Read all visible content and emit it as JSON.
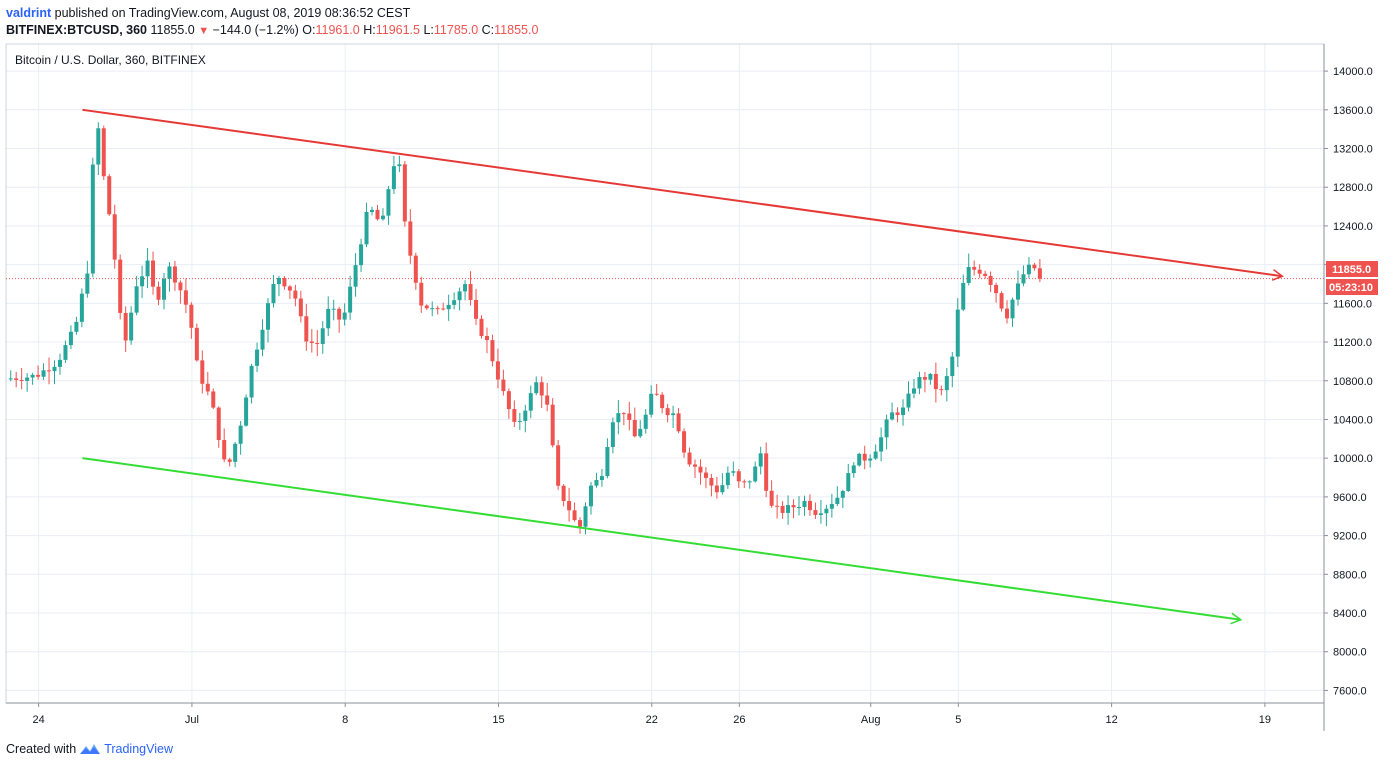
{
  "header": {
    "author": "valdrint",
    "published_text": "published on TradingView.com, August 08, 2019 08:36:52 CEST",
    "symbol_line": "BITFINEX:BTCUSD, 360",
    "last": "11855.0",
    "change": "−144.0 (−1.2%)",
    "o_label": "O:",
    "o_value": "11961.0",
    "h_label": "H:",
    "h_value": "11961.5",
    "l_label": "L:",
    "l_value": "11785.0",
    "c_label": "C:",
    "c_value": "11855.0"
  },
  "legend": {
    "title": "Bitcoin / U.S. Dollar, 360, BITFINEX"
  },
  "price_badges": {
    "last_price": "11855.0",
    "countdown": "05:23:10"
  },
  "footer": {
    "created_with": "Created with",
    "brand": "TradingView"
  },
  "colors": {
    "up": "#26a69a",
    "down": "#ef5350",
    "resistance": "#e53935",
    "support": "#33dd33",
    "grid": "#e9eef5",
    "brand": "#2962ff"
  },
  "chart_data": {
    "type": "candlestick",
    "title": "Bitcoin / U.S. Dollar, 360, BITFINEX",
    "y_axis": {
      "ticks": [
        "14000.0",
        "13600.0",
        "13200.0",
        "12800.0",
        "12400.0",
        "12000.0",
        "11600.0",
        "11200.0",
        "10800.0",
        "10400.0",
        "10000.0",
        "9600.0",
        "9200.0",
        "8800.0",
        "8400.0",
        "8000.0",
        "7600.0"
      ],
      "range": [
        7470,
        14280
      ]
    },
    "x_axis": {
      "ticks": [
        {
          "label": "24",
          "day": 0
        },
        {
          "label": "Jul",
          "day": 7
        },
        {
          "label": "8",
          "day": 14
        },
        {
          "label": "15",
          "day": 21
        },
        {
          "label": "22",
          "day": 28
        },
        {
          "label": "26",
          "day": 32
        },
        {
          "label": "Aug",
          "day": 38
        },
        {
          "label": "5",
          "day": 42
        },
        {
          "label": "12",
          "day": 49
        },
        {
          "label": "19",
          "day": 56
        }
      ],
      "range": [
        -1.49,
        58.7
      ]
    },
    "grid": true,
    "trendlines": [
      {
        "name": "resistance",
        "from": {
          "day": 2,
          "price": 13600
        },
        "to": {
          "day": 56.8,
          "price": 11880
        },
        "color": "#e53935"
      },
      {
        "name": "support",
        "from": {
          "day": 2,
          "price": 10000
        },
        "to": {
          "day": 54.9,
          "price": 8330
        },
        "color": "#33dd33"
      }
    ],
    "last_price_line": 11855.0,
    "anchors": [
      {
        "day": -1.4,
        "price": 10820
      },
      {
        "day": 0.0,
        "price": 10850
      },
      {
        "day": 1.0,
        "price": 11000
      },
      {
        "day": 1.8,
        "price": 11350
      },
      {
        "day": 2.4,
        "price": 12000
      },
      {
        "day": 2.6,
        "price": 13000
      },
      {
        "day": 2.85,
        "price": 13400
      },
      {
        "day": 3.1,
        "price": 12900
      },
      {
        "day": 3.5,
        "price": 12300
      },
      {
        "day": 4.0,
        "price": 11100
      },
      {
        "day": 4.6,
        "price": 11800
      },
      {
        "day": 5.1,
        "price": 12000
      },
      {
        "day": 5.5,
        "price": 11600
      },
      {
        "day": 6.0,
        "price": 12000
      },
      {
        "day": 6.5,
        "price": 11800
      },
      {
        "day": 7.0,
        "price": 11500
      },
      {
        "day": 7.4,
        "price": 10900
      },
      {
        "day": 8.0,
        "price": 10600
      },
      {
        "day": 8.7,
        "price": 9850
      },
      {
        "day": 9.3,
        "price": 10300
      },
      {
        "day": 9.8,
        "price": 10900
      },
      {
        "day": 10.5,
        "price": 11500
      },
      {
        "day": 11.0,
        "price": 11900
      },
      {
        "day": 11.8,
        "price": 11700
      },
      {
        "day": 12.3,
        "price": 11250
      },
      {
        "day": 12.8,
        "price": 11150
      },
      {
        "day": 13.4,
        "price": 11550
      },
      {
        "day": 14.0,
        "price": 11400
      },
      {
        "day": 14.5,
        "price": 11900
      },
      {
        "day": 15.2,
        "price": 12600
      },
      {
        "day": 15.8,
        "price": 12400
      },
      {
        "day": 16.3,
        "price": 13050
      },
      {
        "day": 16.6,
        "price": 13000
      },
      {
        "day": 16.9,
        "price": 12300
      },
      {
        "day": 17.6,
        "price": 11600
      },
      {
        "day": 18.3,
        "price": 11500
      },
      {
        "day": 19.0,
        "price": 11650
      },
      {
        "day": 19.6,
        "price": 11800
      },
      {
        "day": 20.1,
        "price": 11400
      },
      {
        "day": 20.6,
        "price": 11200
      },
      {
        "day": 21.3,
        "price": 10700
      },
      {
        "day": 21.9,
        "price": 10300
      },
      {
        "day": 22.5,
        "price": 10600
      },
      {
        "day": 22.9,
        "price": 10800
      },
      {
        "day": 23.4,
        "price": 10500
      },
      {
        "day": 23.8,
        "price": 9700
      },
      {
        "day": 24.3,
        "price": 9500
      },
      {
        "day": 24.8,
        "price": 9250
      },
      {
        "day": 25.3,
        "price": 9700
      },
      {
        "day": 25.8,
        "price": 9800
      },
      {
        "day": 26.3,
        "price": 10400
      },
      {
        "day": 26.9,
        "price": 10500
      },
      {
        "day": 27.3,
        "price": 10200
      },
      {
        "day": 27.8,
        "price": 10400
      },
      {
        "day": 28.2,
        "price": 10700
      },
      {
        "day": 28.7,
        "price": 10500
      },
      {
        "day": 29.2,
        "price": 10450
      },
      {
        "day": 29.7,
        "price": 10000
      },
      {
        "day": 30.2,
        "price": 9900
      },
      {
        "day": 30.7,
        "price": 9750
      },
      {
        "day": 31.2,
        "price": 9650
      },
      {
        "day": 31.7,
        "price": 9900
      },
      {
        "day": 32.2,
        "price": 9700
      },
      {
        "day": 32.7,
        "price": 9800
      },
      {
        "day": 33.1,
        "price": 10050
      },
      {
        "day": 33.5,
        "price": 9500
      },
      {
        "day": 34.0,
        "price": 9450
      },
      {
        "day": 34.6,
        "price": 9500
      },
      {
        "day": 35.1,
        "price": 9550
      },
      {
        "day": 35.6,
        "price": 9450
      },
      {
        "day": 36.1,
        "price": 9500
      },
      {
        "day": 36.6,
        "price": 9600
      },
      {
        "day": 37.0,
        "price": 9750
      },
      {
        "day": 37.4,
        "price": 10000
      },
      {
        "day": 38.0,
        "price": 10000
      },
      {
        "day": 38.5,
        "price": 10150
      },
      {
        "day": 39.0,
        "price": 10450
      },
      {
        "day": 39.6,
        "price": 10500
      },
      {
        "day": 40.2,
        "price": 10800
      },
      {
        "day": 40.8,
        "price": 10850
      },
      {
        "day": 41.3,
        "price": 10650
      },
      {
        "day": 41.8,
        "price": 10950
      },
      {
        "day": 42.2,
        "price": 11700
      },
      {
        "day": 42.6,
        "price": 11950
      },
      {
        "day": 43.0,
        "price": 11950
      },
      {
        "day": 43.4,
        "price": 11900
      },
      {
        "day": 43.9,
        "price": 11700
      },
      {
        "day": 44.3,
        "price": 11450
      },
      {
        "day": 44.7,
        "price": 11700
      },
      {
        "day": 45.1,
        "price": 11900
      },
      {
        "day": 45.5,
        "price": 12000
      },
      {
        "day": 45.9,
        "price": 11855
      }
    ]
  }
}
